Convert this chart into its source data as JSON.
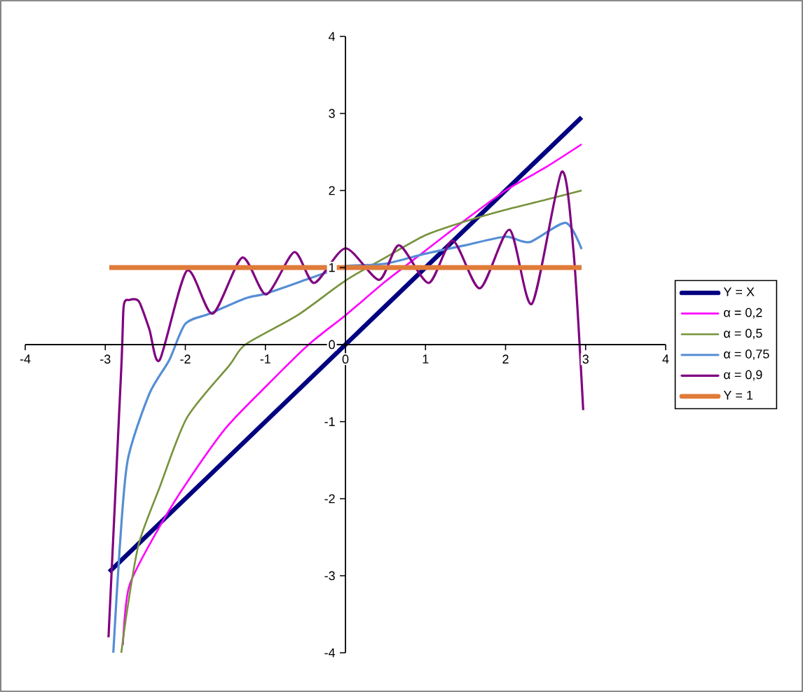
{
  "chart_data": {
    "type": "line",
    "xlim": [
      -4,
      4
    ],
    "ylim": [
      -4,
      4
    ],
    "xticks": [
      -4,
      -3,
      -2,
      -1,
      0,
      1,
      2,
      3,
      4
    ],
    "yticks": [
      -4,
      -3,
      -2,
      -1,
      0,
      1,
      2,
      3,
      4
    ],
    "grid": false,
    "legend": "right",
    "marker": "none",
    "line_style": "solid",
    "series": [
      {
        "name": "Y = X",
        "color": "#000080",
        "x": [
          -2.95,
          2.95
        ],
        "values": [
          -2.95,
          2.95
        ]
      },
      {
        "name": "α = 0,2",
        "color": "#ff00ff",
        "x": [
          -2.78,
          -2.7,
          -2.32,
          -2.0,
          -1.5,
          -1.0,
          -0.46,
          0,
          0.5,
          1.0,
          1.5,
          2.0,
          2.5,
          2.95
        ],
        "values": [
          -3.9,
          -3.13,
          -2.36,
          -1.82,
          -1.09,
          -0.55,
          0,
          0.38,
          0.82,
          1.22,
          1.62,
          2.0,
          2.3,
          2.6
        ]
      },
      {
        "name": "α = 0,5",
        "color": "#77933c",
        "x": [
          -2.8,
          -2.72,
          -2.58,
          -2.32,
          -1.98,
          -1.45,
          -1.25,
          -0.6,
          0,
          0.5,
          1.0,
          1.5,
          2.0,
          2.5,
          2.95
        ],
        "values": [
          -4.0,
          -3.4,
          -2.58,
          -1.85,
          -0.95,
          -0.27,
          0,
          0.38,
          0.83,
          1.13,
          1.42,
          1.6,
          1.75,
          1.88,
          2.0
        ]
      },
      {
        "name": "α = 0,75",
        "color": "#558ed5",
        "x": [
          -2.9,
          -2.82,
          -2.72,
          -2.45,
          -2.2,
          -2.0,
          -1.7,
          -1.25,
          -1.0,
          -0.5,
          -0.2,
          0,
          0.5,
          1.0,
          1.5,
          2.0,
          2.3,
          2.75,
          2.95
        ],
        "values": [
          -4.0,
          -2.64,
          -1.5,
          -0.64,
          -0.2,
          0.27,
          0.4,
          0.6,
          0.66,
          0.84,
          0.95,
          1.02,
          1.05,
          1.18,
          1.29,
          1.4,
          1.33,
          1.58,
          1.24
        ]
      },
      {
        "name": "α = 0,9",
        "color": "#800080",
        "x": [
          -2.96,
          -2.8,
          -2.77,
          -2.7,
          -2.58,
          -2.45,
          -2.32,
          -1.98,
          -1.66,
          -1.29,
          -0.99,
          -0.64,
          -0.39,
          0.0,
          0.42,
          0.67,
          1.04,
          1.34,
          1.68,
          2.05,
          2.33,
          2.7,
          2.85,
          2.97
        ],
        "values": [
          -3.8,
          -0.3,
          0.5,
          0.58,
          0.56,
          0.2,
          -0.2,
          0.96,
          0.4,
          1.13,
          0.65,
          1.2,
          0.8,
          1.25,
          0.84,
          1.29,
          0.8,
          1.35,
          0.73,
          1.49,
          0.53,
          2.24,
          1.2,
          -0.85
        ]
      },
      {
        "name": "Y = 1",
        "color": "#e07b39",
        "x": [
          -2.95,
          2.95
        ],
        "values": [
          1,
          1
        ]
      }
    ]
  }
}
